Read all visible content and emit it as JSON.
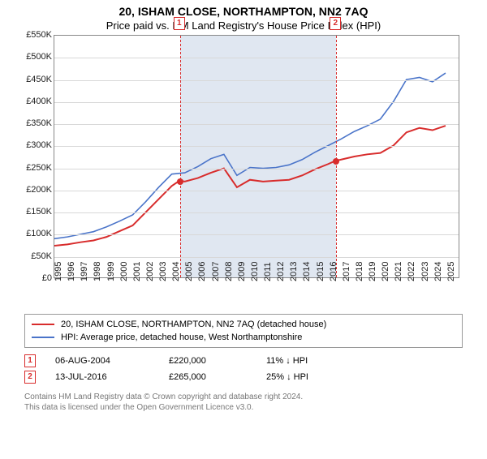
{
  "title": "20, ISHAM CLOSE, NORTHAMPTON, NN2 7AQ",
  "subtitle": "Price paid vs. HM Land Registry's House Price Index (HPI)",
  "chart": {
    "type": "line",
    "x_years": [
      1995,
      1996,
      1997,
      1998,
      1999,
      2000,
      2001,
      2002,
      2003,
      2004,
      2005,
      2006,
      2007,
      2008,
      2009,
      2010,
      2011,
      2012,
      2013,
      2014,
      2015,
      2016,
      2017,
      2018,
      2019,
      2020,
      2021,
      2022,
      2023,
      2024,
      2025
    ],
    "x_range": [
      1995,
      2026
    ],
    "ylim": [
      0,
      550
    ],
    "ytick_step": 50,
    "y_prefix": "£",
    "y_suffix": "K",
    "grid_color": "#d8d8d8",
    "border_color": "#888888",
    "background_color": "#ffffff",
    "shade_color": "#dbe3ef",
    "shade_range": [
      2004.6,
      2016.53
    ],
    "series": [
      {
        "name": "price_paid",
        "legend": "20, ISHAM CLOSE, NORTHAMPTON, NN2 7AQ (detached house)",
        "color": "#d82c2c",
        "width": 2,
        "x": [
          1995,
          1996,
          1997,
          1998,
          1999,
          2000,
          2001,
          2002,
          2003,
          2004,
          2004.6,
          2005,
          2006,
          2007,
          2008,
          2009,
          2010,
          2011,
          2012,
          2013,
          2014,
          2015,
          2016,
          2016.53,
          2017,
          2018,
          2019,
          2020,
          2021,
          2022,
          2023,
          2024,
          2025
        ],
        "y": [
          72,
          75,
          80,
          84,
          92,
          105,
          118,
          148,
          178,
          208,
          220,
          218,
          226,
          238,
          248,
          205,
          222,
          218,
          220,
          222,
          232,
          246,
          258,
          265,
          268,
          275,
          280,
          283,
          300,
          330,
          340,
          335,
          345
        ]
      },
      {
        "name": "hpi",
        "legend": "HPI: Average price, detached house, West Northamptonshire",
        "color": "#4a74c9",
        "width": 1.6,
        "x": [
          1995,
          1996,
          1997,
          1998,
          1999,
          2000,
          2001,
          2002,
          2003,
          2004,
          2005,
          2006,
          2007,
          2008,
          2009,
          2010,
          2011,
          2012,
          2013,
          2014,
          2015,
          2016,
          2017,
          2018,
          2019,
          2020,
          2021,
          2022,
          2023,
          2024,
          2025
        ],
        "y": [
          88,
          92,
          98,
          104,
          115,
          128,
          142,
          172,
          205,
          235,
          238,
          252,
          270,
          280,
          232,
          250,
          248,
          250,
          256,
          268,
          285,
          300,
          315,
          332,
          345,
          360,
          400,
          450,
          455,
          445,
          465
        ]
      }
    ],
    "markers": [
      {
        "id": "1",
        "x": 2004.6,
        "price_y": 220,
        "box_color": "#d82c2c"
      },
      {
        "id": "2",
        "x": 2016.53,
        "price_y": 265,
        "box_color": "#d82c2c"
      }
    ]
  },
  "legend_border": "#999999",
  "sales": [
    {
      "id": "1",
      "date": "06-AUG-2004",
      "price": "£220,000",
      "pct": "11% ↓ HPI",
      "color": "#d82c2c"
    },
    {
      "id": "2",
      "date": "13-JUL-2016",
      "price": "£265,000",
      "pct": "25% ↓ HPI",
      "color": "#d82c2c"
    }
  ],
  "footer_lines": [
    "Contains HM Land Registry data © Crown copyright and database right 2024.",
    "This data is licensed under the Open Government Licence v3.0."
  ]
}
